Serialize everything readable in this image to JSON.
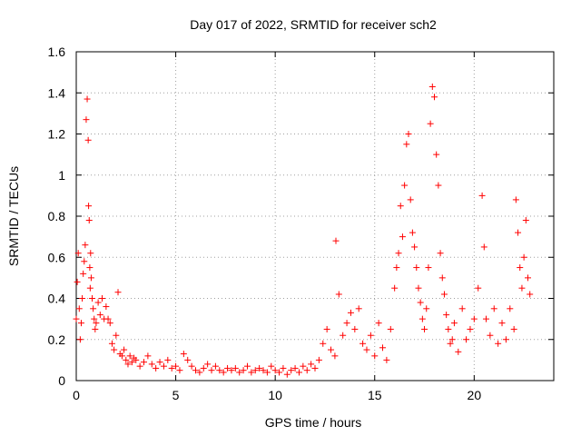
{
  "chart_data": {
    "type": "scatter",
    "title": "Day 017 of 2022, SRMTID for receiver sch2",
    "xlabel": "GPS time / hours",
    "ylabel": "SRMTID / TECUs",
    "xlim": [
      0,
      24
    ],
    "ylim": [
      0,
      1.6
    ],
    "xticks": [
      0,
      5,
      10,
      15,
      20
    ],
    "xtick_labels": [
      "0",
      "5",
      "10",
      "15",
      "20"
    ],
    "yticks": [
      0,
      0.2,
      0.4,
      0.6,
      0.8,
      1,
      1.2,
      1.4,
      1.6
    ],
    "ytick_labels": [
      "0",
      "0.2",
      "0.4",
      "0.6",
      "0.8",
      "1",
      "1.2",
      "1.4",
      "1.6"
    ],
    "grid": true,
    "marker": "plus",
    "series": [
      {
        "name": "SRMTID",
        "color": "#ff0000",
        "x": [
          0.0,
          0.05,
          0.1,
          0.15,
          0.2,
          0.25,
          0.3,
          0.35,
          0.4,
          0.45,
          0.5,
          0.55,
          0.6,
          0.62,
          0.65,
          0.68,
          0.7,
          0.72,
          0.75,
          0.8,
          0.85,
          0.9,
          0.95,
          1.0,
          1.1,
          1.2,
          1.3,
          1.4,
          1.5,
          1.6,
          1.7,
          1.8,
          1.9,
          2.0,
          2.1,
          2.2,
          2.3,
          2.4,
          2.5,
          2.6,
          2.7,
          2.8,
          2.9,
          3.0,
          3.2,
          3.4,
          3.6,
          3.8,
          4.0,
          4.2,
          4.4,
          4.6,
          4.8,
          5.0,
          5.2,
          5.4,
          5.6,
          5.8,
          6.0,
          6.2,
          6.4,
          6.6,
          6.8,
          7.0,
          7.2,
          7.4,
          7.6,
          7.8,
          8.0,
          8.2,
          8.4,
          8.6,
          8.8,
          9.0,
          9.2,
          9.4,
          9.6,
          9.8,
          10.0,
          10.2,
          10.4,
          10.6,
          10.8,
          11.0,
          11.2,
          11.4,
          11.6,
          11.8,
          12.0,
          12.2,
          12.4,
          12.6,
          12.8,
          13.0,
          13.05,
          13.2,
          13.4,
          13.6,
          13.8,
          14.0,
          14.2,
          14.4,
          14.6,
          14.8,
          15.0,
          15.2,
          15.4,
          15.6,
          15.8,
          16.0,
          16.1,
          16.2,
          16.3,
          16.4,
          16.5,
          16.6,
          16.7,
          16.8,
          16.9,
          17.0,
          17.1,
          17.2,
          17.3,
          17.4,
          17.5,
          17.6,
          17.7,
          17.8,
          17.9,
          18.0,
          18.1,
          18.2,
          18.3,
          18.4,
          18.5,
          18.6,
          18.7,
          18.8,
          18.9,
          19.0,
          19.2,
          19.4,
          19.6,
          19.8,
          20.0,
          20.2,
          20.4,
          20.5,
          20.6,
          20.8,
          21.0,
          21.2,
          21.4,
          21.6,
          21.8,
          22.0,
          22.1,
          22.2,
          22.3,
          22.4,
          22.5,
          22.6,
          22.7,
          22.8
        ],
        "y": [
          0.3,
          0.48,
          0.62,
          0.35,
          0.2,
          0.28,
          0.4,
          0.52,
          0.58,
          0.66,
          1.27,
          1.37,
          1.17,
          0.85,
          0.78,
          0.55,
          0.45,
          0.62,
          0.5,
          0.4,
          0.35,
          0.3,
          0.25,
          0.28,
          0.38,
          0.32,
          0.4,
          0.3,
          0.36,
          0.3,
          0.28,
          0.18,
          0.15,
          0.22,
          0.43,
          0.13,
          0.12,
          0.15,
          0.1,
          0.08,
          0.12,
          0.09,
          0.11,
          0.1,
          0.07,
          0.09,
          0.12,
          0.08,
          0.06,
          0.09,
          0.07,
          0.1,
          0.06,
          0.07,
          0.05,
          0.13,
          0.1,
          0.07,
          0.05,
          0.04,
          0.06,
          0.08,
          0.05,
          0.07,
          0.05,
          0.04,
          0.06,
          0.05,
          0.06,
          0.04,
          0.05,
          0.07,
          0.04,
          0.05,
          0.06,
          0.05,
          0.04,
          0.07,
          0.05,
          0.04,
          0.06,
          0.03,
          0.05,
          0.06,
          0.04,
          0.07,
          0.05,
          0.08,
          0.06,
          0.1,
          0.18,
          0.25,
          0.15,
          0.12,
          0.68,
          0.42,
          0.22,
          0.28,
          0.33,
          0.25,
          0.35,
          0.18,
          0.15,
          0.22,
          0.12,
          0.28,
          0.16,
          0.1,
          0.25,
          0.45,
          0.55,
          0.62,
          0.85,
          0.7,
          0.95,
          1.15,
          1.2,
          0.88,
          0.72,
          0.65,
          0.55,
          0.45,
          0.38,
          0.3,
          0.25,
          0.35,
          0.55,
          1.25,
          1.43,
          1.38,
          1.1,
          0.95,
          0.62,
          0.5,
          0.42,
          0.32,
          0.25,
          0.18,
          0.2,
          0.28,
          0.14,
          0.35,
          0.2,
          0.25,
          0.3,
          0.45,
          0.9,
          0.65,
          0.3,
          0.22,
          0.35,
          0.18,
          0.28,
          0.2,
          0.35,
          0.25,
          0.88,
          0.72,
          0.55,
          0.45,
          0.6,
          0.78,
          0.5,
          0.42
        ]
      }
    ]
  }
}
